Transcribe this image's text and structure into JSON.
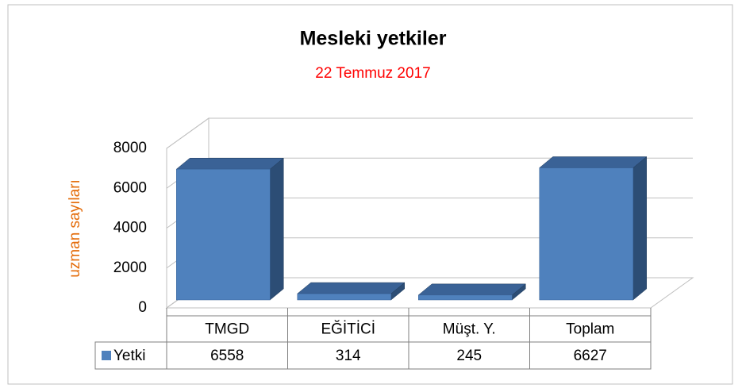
{
  "chart_data": {
    "type": "bar3d",
    "title": "Mesleki yetkiler",
    "subtitle": "22 Temmuz 2017",
    "y_label": "uzman sayıları",
    "categories": [
      "TMGD",
      "EĞİTİCİ",
      "Müşt. Y.",
      "Toplam"
    ],
    "series": [
      {
        "name": "Yetki",
        "color": "#4f81bd",
        "values": [
          6558,
          314,
          245,
          6627
        ]
      }
    ],
    "ylim": [
      0,
      8000
    ],
    "yticks": [
      0,
      2000,
      4000,
      6000,
      8000
    ],
    "grid": true,
    "data_table": true
  }
}
